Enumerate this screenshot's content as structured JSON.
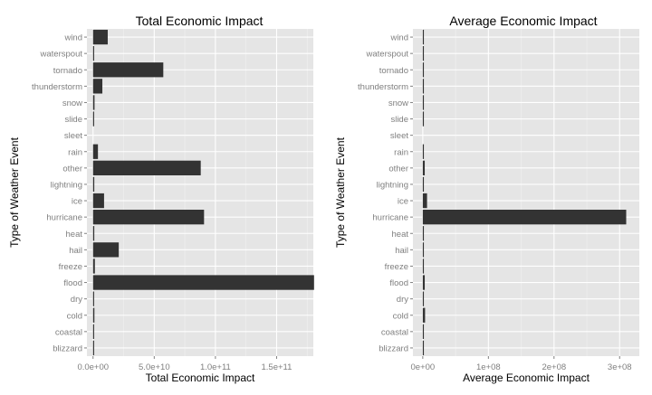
{
  "chart_data": [
    {
      "type": "bar",
      "orientation": "horizontal",
      "title": "Total Economic Impact",
      "xlabel": "Total Economic Impact",
      "ylabel": "Type of Weather Event",
      "xlim": [
        -5000000000.0,
        180000000000.0
      ],
      "xticks": [
        0,
        50000000000.0,
        100000000000.0,
        150000000000.0
      ],
      "xtick_labels": [
        "0.0e+00",
        "5.0e+10",
        "1.0e+11",
        "1.5e+11"
      ],
      "categories": [
        "wind",
        "waterspout",
        "tornado",
        "thunderstorm",
        "snow",
        "slide",
        "sleet",
        "rain",
        "other",
        "lightning",
        "ice",
        "hurricane",
        "heat",
        "hail",
        "freeze",
        "flood",
        "dry",
        "cold",
        "coastal",
        "blizzard"
      ],
      "values": [
        12000000000,
        50000000,
        57400000000,
        7600000000,
        1200000000,
        350000000,
        0,
        4000000000,
        88000000000,
        1000000000,
        9000000000,
        90700000000,
        1000000000,
        21000000000,
        1500000000,
        180600000000,
        500000000,
        1100000000,
        200000000,
        800000000
      ],
      "grid": true
    },
    {
      "type": "bar",
      "orientation": "horizontal",
      "title": "Average Economic Impact",
      "xlabel": "Average Economic Impact",
      "ylabel": "Type of Weather Event",
      "xlim": [
        -15000000.0,
        330000000.0
      ],
      "xticks": [
        0,
        100000000.0,
        200000000.0,
        300000000.0
      ],
      "xtick_labels": [
        "0e+00",
        "1e+08",
        "2e+08",
        "3e+08"
      ],
      "categories": [
        "wind",
        "waterspout",
        "tornado",
        "thunderstorm",
        "snow",
        "slide",
        "sleet",
        "rain",
        "other",
        "lightning",
        "ice",
        "hurricane",
        "heat",
        "hail",
        "freeze",
        "flood",
        "dry",
        "cold",
        "coastal",
        "blizzard"
      ],
      "values": [
        1000000,
        100000,
        1400000,
        500000,
        1000000,
        1000000,
        0,
        1000000,
        3000000,
        500000,
        6500000,
        310000000,
        500000,
        1000000,
        1000000,
        3000000,
        500000,
        3500000,
        500000,
        1000000
      ],
      "grid": true
    }
  ]
}
